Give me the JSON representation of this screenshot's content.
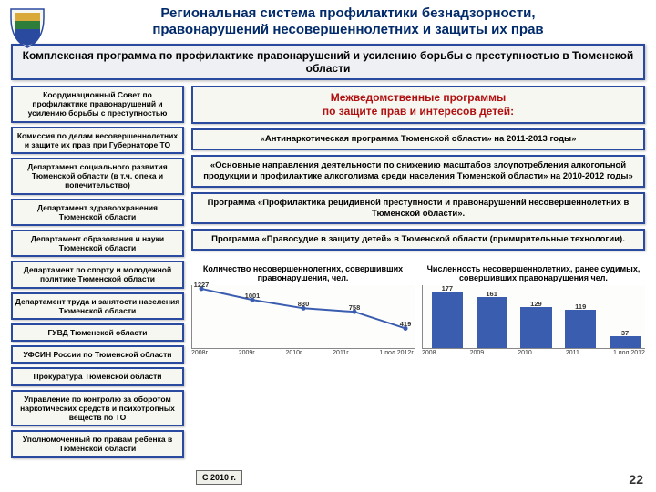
{
  "title_l1": "Региональная система профилактики безнадзорности,",
  "title_l2": "правонарушений несовершеннолетних и защиты их прав",
  "banner": "Комплексная программа по профилактике правонарушений и усилению борьбы с преступностью в Тюменской области",
  "left_boxes": [
    "Координационный Совет по профилактике правонарушений и усилению борьбы с преступностью",
    "Комиссия по делам несовершеннолетних и защите их прав при Губернаторе ТО",
    "Департамент социального развития Тюменской области (в т.ч. опека и попечительство)",
    "Департамент здравоохранения Тюменской области",
    "Департамент образования и науки Тюменской области",
    "Департамент по спорту и молодежной политике Тюменской области",
    "Департамент труда и занятости населения Тюменской области",
    "ГУВД Тюменской области",
    "УФСИН России по Тюменской области",
    "Прокуратура Тюменской области",
    "Управление по контролю за оборотом наркотических средств и психотропных веществ по ТО",
    "Уполномоченный по правам ребенка в Тюменской области"
  ],
  "right_head_l1": "Межведомственные программы",
  "right_head_l2": "по защите прав и интересов детей:",
  "right_boxes": [
    "«Антинаркотическая программа Тюменской области» на 2011-2013 годы»",
    "«Основные направления деятельности по снижению масштабов злоупотребления алкогольной продукции и профилактике алкоголизма среди населения Тюменской области» на 2010-2012 годы»",
    "Программа «Профилактика рецидивной преступности и правонарушений несовершеннолетних в Тюменской области».",
    "Программа «Правосудие в защиту детей» в Тюменской области (примирительные технологии)."
  ],
  "chart1": {
    "title": "Количество несовершеннолетних, совершивших правонарушения, чел.",
    "type": "line",
    "categories": [
      "2008г.",
      "2009г.",
      "2010г.",
      "2011г.",
      "1 пол.2012г."
    ],
    "values": [
      1227,
      1001,
      830,
      758,
      419
    ],
    "color": "#3a5db0",
    "ylim": [
      0,
      1300
    ]
  },
  "chart2": {
    "title": "Численность несовершеннолетних, ранее судимых, совершивших правонарушения чел.",
    "type": "bar",
    "categories": [
      "2008",
      "2009",
      "2010",
      "2011",
      "1 пол.2012"
    ],
    "values": [
      177,
      161,
      129,
      119,
      37
    ],
    "color": "#3a5db0",
    "ylim": [
      0,
      200
    ]
  },
  "note": "С 2010 г.",
  "pagenum": "22",
  "logo_colors": {
    "shield": "#2a4aa0",
    "gold": "#d9a93a",
    "green": "#2f7d3a"
  }
}
